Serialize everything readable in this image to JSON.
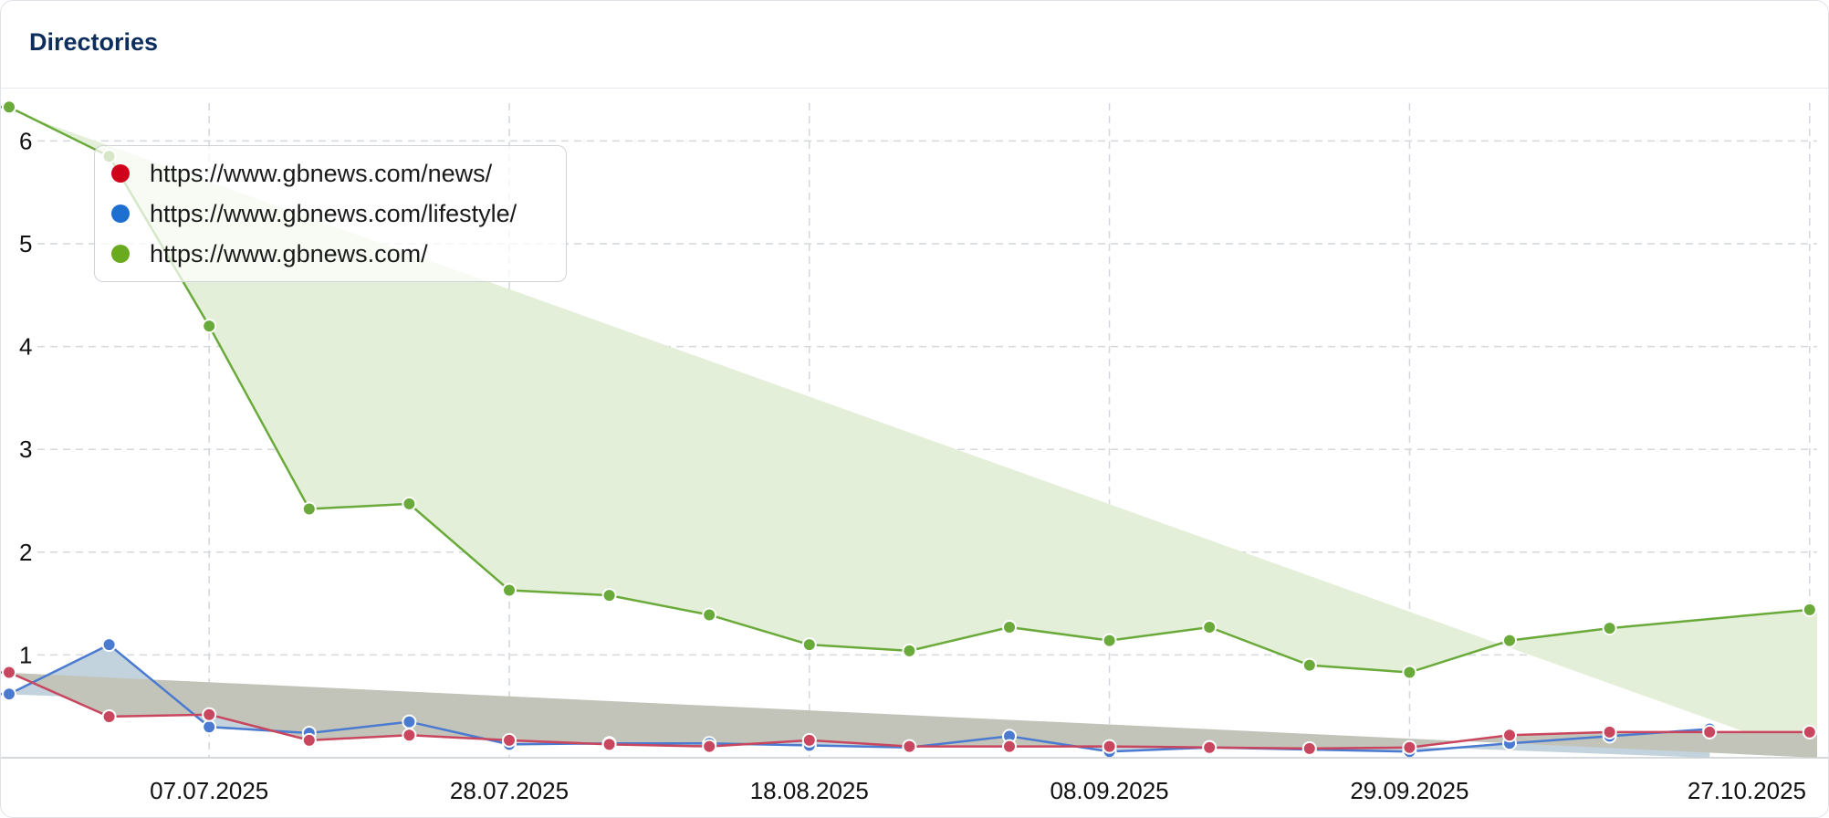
{
  "card": {
    "title": "Directories"
  },
  "legend": {
    "items": [
      {
        "label": "https://www.gbnews.com/news/",
        "color": "#d0021b"
      },
      {
        "label": "https://www.gbnews.com/lifestyle/",
        "color": "#1f6fd1"
      },
      {
        "label": "https://www.gbnews.com/",
        "color": "#6aaa1e"
      }
    ]
  },
  "chart_data": {
    "type": "area",
    "x": [
      "2025-06-23",
      "2025-06-30",
      "2025-07-07",
      "2025-07-14",
      "2025-07-21",
      "2025-07-28",
      "2025-08-04",
      "2025-08-11",
      "2025-08-18",
      "2025-08-25",
      "2025-09-01",
      "2025-09-08",
      "2025-09-15",
      "2025-09-22",
      "2025-09-29",
      "2025-10-06",
      "2025-10-13",
      "2025-10-20",
      "2025-10-27"
    ],
    "x_tick_labels": [
      "07.07.2025",
      "28.07.2025",
      "18.08.2025",
      "08.09.2025",
      "29.09.2025",
      "27.10.2025"
    ],
    "y_ticks": [
      "1",
      "2",
      "3",
      "4",
      "5",
      "6"
    ],
    "ylim": [
      0,
      6.4
    ],
    "grid": true,
    "legend_position": "top-left",
    "series": [
      {
        "name": "https://www.gbnews.com/",
        "color": "#6aaa1e",
        "line_color": "#6aaa3a",
        "fill": "#e3efd8",
        "values": [
          6.33,
          5.85,
          4.2,
          2.42,
          2.47,
          1.63,
          1.58,
          1.39,
          1.1,
          1.04,
          1.27,
          1.14,
          1.27,
          0.9,
          0.83,
          1.14,
          1.26,
          null,
          1.44
        ]
      },
      {
        "name": "https://www.gbnews.com/lifestyle/",
        "color": "#1f6fd1",
        "line_color": "#4a7bd0",
        "fill": "#c3d3dd",
        "values": [
          0.62,
          1.1,
          0.3,
          0.24,
          0.35,
          0.13,
          0.14,
          0.14,
          0.12,
          0.1,
          0.21,
          0.06,
          0.1,
          0.08,
          0.06,
          0.14,
          0.21,
          0.28,
          null
        ]
      },
      {
        "name": "https://www.gbnews.com/news/",
        "color": "#d0021b",
        "line_color": "#c8465e",
        "fill": "#c2c4ba",
        "values": [
          0.83,
          0.4,
          0.42,
          0.17,
          0.22,
          0.17,
          0.13,
          0.11,
          0.17,
          0.11,
          0.11,
          0.11,
          0.1,
          0.09,
          0.1,
          0.22,
          0.25,
          0.25,
          0.25
        ]
      }
    ]
  }
}
